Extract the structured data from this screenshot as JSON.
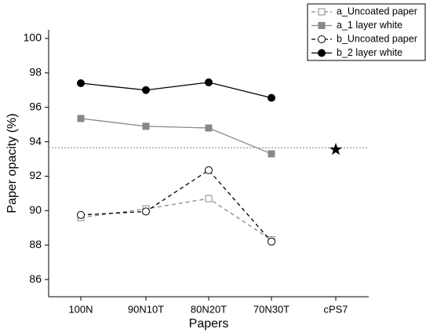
{
  "chart_data": {
    "type": "line",
    "xlabel": "Papers",
    "ylabel": "Paper opacity (%)",
    "categories": [
      "100N",
      "90N10T",
      "80N20T",
      "70N30T",
      "cPS7"
    ],
    "ylim": [
      85,
      100.5
    ],
    "yticks": [
      86,
      88,
      90,
      92,
      94,
      96,
      98,
      100
    ],
    "legend": "upper-right",
    "series": [
      {
        "name": "a_Uncoated paper",
        "color": "#888888",
        "dash": true,
        "marker": "square",
        "filled": false,
        "values": [
          89.6,
          90.1,
          90.7,
          88.3,
          null
        ]
      },
      {
        "name": "a_1 layer white",
        "color": "#888888",
        "dash": false,
        "marker": "square",
        "filled": true,
        "values": [
          95.35,
          94.9,
          94.8,
          93.3,
          null
        ]
      },
      {
        "name": "b_Uncoated paper",
        "color": "#000000",
        "dash": true,
        "marker": "circle",
        "filled": false,
        "values": [
          89.75,
          89.95,
          92.35,
          88.2,
          null
        ]
      },
      {
        "name": "b_2 layer white",
        "color": "#000000",
        "dash": false,
        "marker": "circle",
        "filled": true,
        "values": [
          97.4,
          97.0,
          97.45,
          96.55,
          null
        ]
      },
      {
        "color": "#000000",
        "dash": false,
        "marker": "star",
        "filled": true,
        "values": [
          null,
          null,
          null,
          null,
          93.55
        ]
      }
    ],
    "reference_line": {
      "value": 93.65,
      "color": "#999999"
    }
  }
}
